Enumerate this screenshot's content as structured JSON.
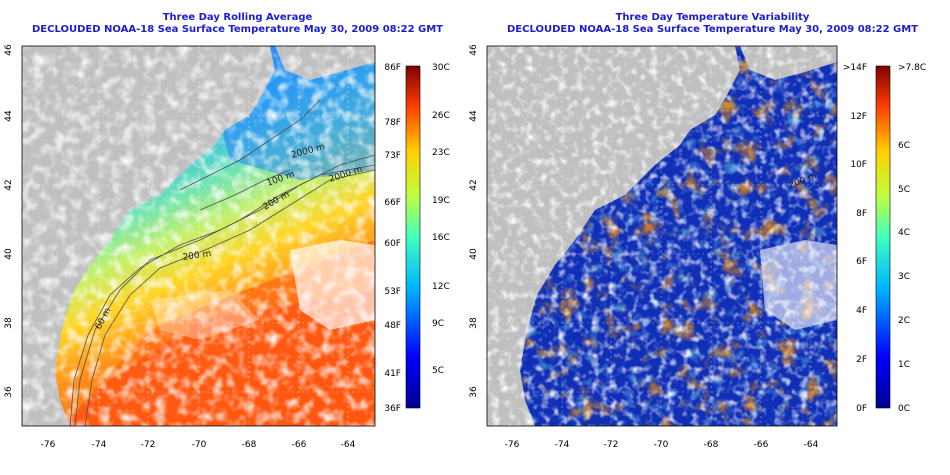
{
  "colors": {
    "title": "#1c1cd0",
    "land": "#c0c0c0",
    "cloud": "#ffffff",
    "contour": "#505050",
    "grid": "#ffffff"
  },
  "icons": [
    "sst-colorbar",
    "variability-colorbar"
  ],
  "maps": [
    {
      "title_line1": "Three Day Rolling Average",
      "title_line2": "DECLOUDED NOAA-18 Sea Surface Temperature May 30, 2009 08:22 GMT",
      "lon_ticks": [
        "-76",
        "-74",
        "-72",
        "-70",
        "-68",
        "-66",
        "-64"
      ],
      "lat_ticks": [
        "46",
        "44",
        "42",
        "40",
        "38",
        "36"
      ],
      "contour_labels": [
        "2000 m",
        "200 m",
        "100 m",
        "200 m",
        "60 m",
        "2000 m"
      ],
      "colorbar": {
        "left_ticks": [
          "86F",
          "78F",
          "73F",
          "66F",
          "60F",
          "53F",
          "48F",
          "41F",
          "36F"
        ],
        "right_ticks": [
          "30C",
          "26C",
          "23C",
          "19C",
          "16C",
          "12C",
          "9C",
          "5C"
        ]
      }
    },
    {
      "title_line1": "Three Day Temperature Variability",
      "title_line2": "DECLOUDED NOAA-18 Sea Surface Temperature May 30, 2009 08:22 GMT",
      "lon_ticks": [
        "-76",
        "-74",
        "-72",
        "-70",
        "-68",
        "-66",
        "-64"
      ],
      "lat_ticks": [
        "46",
        "44",
        "42",
        "40",
        "38",
        "36"
      ],
      "contour_labels": [
        "200 m"
      ],
      "colorbar": {
        "left_ticks": [
          ">14F",
          "12F",
          "10F",
          "8F",
          "6F",
          "4F",
          "2F",
          "0F"
        ],
        "right_ticks": [
          ">7.8C",
          "6C",
          "5C",
          "4C",
          "3C",
          "2C",
          "1C",
          "0C"
        ]
      }
    }
  ]
}
